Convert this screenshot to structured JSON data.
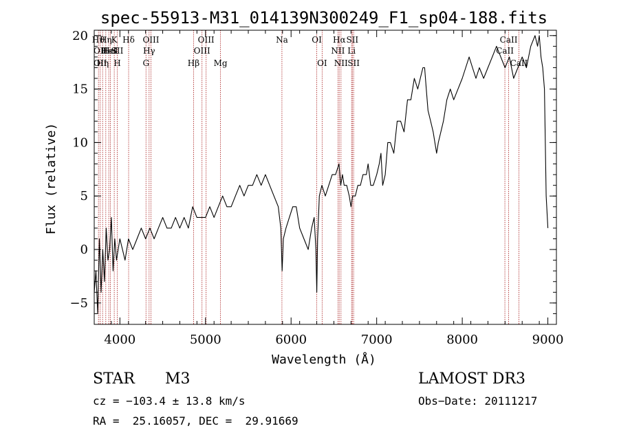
{
  "chart_data": {
    "type": "line",
    "title": "spec-55913-M31_014139N300249_F1_sp04-188.fits",
    "xlabel": "Wavelength (Å)",
    "ylabel": "Flux (relative)",
    "xlim": [
      3700,
      9100
    ],
    "ylim": [
      -7,
      20.5
    ],
    "xticks": [
      4000,
      5000,
      6000,
      7000,
      8000,
      9000
    ],
    "xtick_labels": [
      "4000",
      "5000",
      "6000",
      "7000",
      "8000",
      "9000"
    ],
    "yticks": [
      -5,
      0,
      5,
      10,
      15,
      20
    ],
    "ytick_labels": [
      "−5",
      "0",
      "5",
      "10",
      "15",
      "20"
    ],
    "grid": false,
    "series": [
      {
        "name": "spectrum",
        "x": [
          3700,
          3720,
          3740,
          3760,
          3780,
          3800,
          3820,
          3840,
          3860,
          3880,
          3900,
          3920,
          3940,
          3960,
          3980,
          4000,
          4030,
          4060,
          4100,
          4150,
          4200,
          4250,
          4300,
          4350,
          4400,
          4450,
          4500,
          4550,
          4600,
          4650,
          4700,
          4750,
          4800,
          4850,
          4900,
          4950,
          5000,
          5050,
          5100,
          5150,
          5200,
          5250,
          5300,
          5350,
          5400,
          5450,
          5500,
          5550,
          5600,
          5650,
          5700,
          5750,
          5800,
          5850,
          5880,
          5895,
          5910,
          5940,
          5980,
          6020,
          6060,
          6100,
          6150,
          6200,
          6240,
          6270,
          6290,
          6300,
          6310,
          6330,
          6360,
          6400,
          6440,
          6480,
          6520,
          6560,
          6580,
          6600,
          6620,
          6650,
          6680,
          6700,
          6720,
          6750,
          6780,
          6810,
          6840,
          6860,
          6880,
          6900,
          6930,
          6960,
          7000,
          7030,
          7050,
          7070,
          7100,
          7130,
          7160,
          7200,
          7240,
          7280,
          7320,
          7360,
          7400,
          7440,
          7480,
          7510,
          7540,
          7560,
          7580,
          7600,
          7630,
          7660,
          7680,
          7700,
          7720,
          7750,
          7780,
          7820,
          7860,
          7900,
          7950,
          8000,
          8040,
          8080,
          8120,
          8160,
          8200,
          8250,
          8300,
          8350,
          8400,
          8450,
          8500,
          8550,
          8600,
          8650,
          8700,
          8750,
          8800,
          8850,
          8880,
          8900,
          8920,
          8940,
          8960,
          8980,
          9000
        ],
        "values": [
          -4,
          -2,
          -6,
          1,
          -4,
          0,
          -3,
          2,
          -1,
          0,
          3,
          -2,
          1,
          -1,
          0,
          1,
          0,
          -1,
          1,
          0,
          1,
          2,
          1,
          2,
          1,
          2,
          3,
          2,
          2,
          3,
          2,
          3,
          2,
          4,
          3,
          3,
          3,
          4,
          3,
          4,
          5,
          4,
          4,
          5,
          6,
          5,
          6,
          6,
          7,
          6,
          7,
          6,
          5,
          4,
          2,
          -2,
          1,
          2,
          3,
          4,
          4,
          2,
          1,
          0,
          2,
          3,
          0,
          -4,
          1,
          5,
          6,
          5,
          6,
          7,
          7,
          8,
          6,
          7,
          6,
          6,
          5,
          4,
          5,
          5,
          6,
          6,
          7,
          7,
          7,
          8,
          6,
          6,
          7,
          8,
          9,
          6,
          7,
          10,
          10,
          9,
          12,
          12,
          11,
          14,
          14,
          16,
          15,
          16,
          17,
          17,
          15,
          13,
          12,
          11,
          10,
          9,
          10,
          11,
          12,
          14,
          15,
          14,
          15,
          16,
          17,
          18,
          17,
          16,
          17,
          16,
          17,
          18,
          19,
          18,
          17,
          18,
          16,
          17,
          18,
          17,
          19,
          20,
          19,
          20,
          18,
          17,
          15,
          5,
          2
        ]
      }
    ],
    "emission_lines": [
      {
        "x": 3750,
        "top": "Hϑ"
      },
      {
        "x": 3770,
        "mid": "OII",
        "bot": "OII"
      },
      {
        "x": 3798,
        "bot": "Hη"
      },
      {
        "x": 3835,
        "top": "Hη"
      },
      {
        "x": 3870,
        "mid": "HeI"
      },
      {
        "x": 3889,
        "mid": "HeI"
      },
      {
        "x": 3934,
        "top": "K"
      },
      {
        "x": 3969,
        "mid": "SII",
        "bot": "H"
      },
      {
        "x": 4102,
        "top": "Hδ"
      },
      {
        "x": 4305,
        "bot": "G"
      },
      {
        "x": 4341,
        "mid": "Hγ"
      },
      {
        "x": 4363,
        "top": "OIII"
      },
      {
        "x": 4861,
        "bot": "Hβ"
      },
      {
        "x": 4959,
        "mid": "OIII"
      },
      {
        "x": 5007,
        "top": "OIII"
      },
      {
        "x": 5175,
        "bot": "Mg"
      },
      {
        "x": 5893,
        "top": "Na"
      },
      {
        "x": 6300,
        "top": "OI"
      },
      {
        "x": 6363,
        "bot": "OI"
      },
      {
        "x": 6548,
        "mid": "NII"
      },
      {
        "x": 6563,
        "top": "Hα"
      },
      {
        "x": 6583,
        "bot": "NII"
      },
      {
        "x": 6707,
        "mid": "Li"
      },
      {
        "x": 6716,
        "top": "SII"
      },
      {
        "x": 6731,
        "bot": "SII"
      },
      {
        "x": 8498,
        "mid": "CaII"
      },
      {
        "x": 8542,
        "top": "CaII"
      },
      {
        "x": 8662,
        "bot": "CaII"
      }
    ]
  },
  "info": {
    "class_label": "STAR",
    "subclass": "M3",
    "survey": "LAMOST DR3",
    "cz": "cz = −103.4 ± 13.8 km/s",
    "obs_date": "Obs−Date: 20111217",
    "coords": "RA =  25.16057, DEC =  29.91669"
  }
}
